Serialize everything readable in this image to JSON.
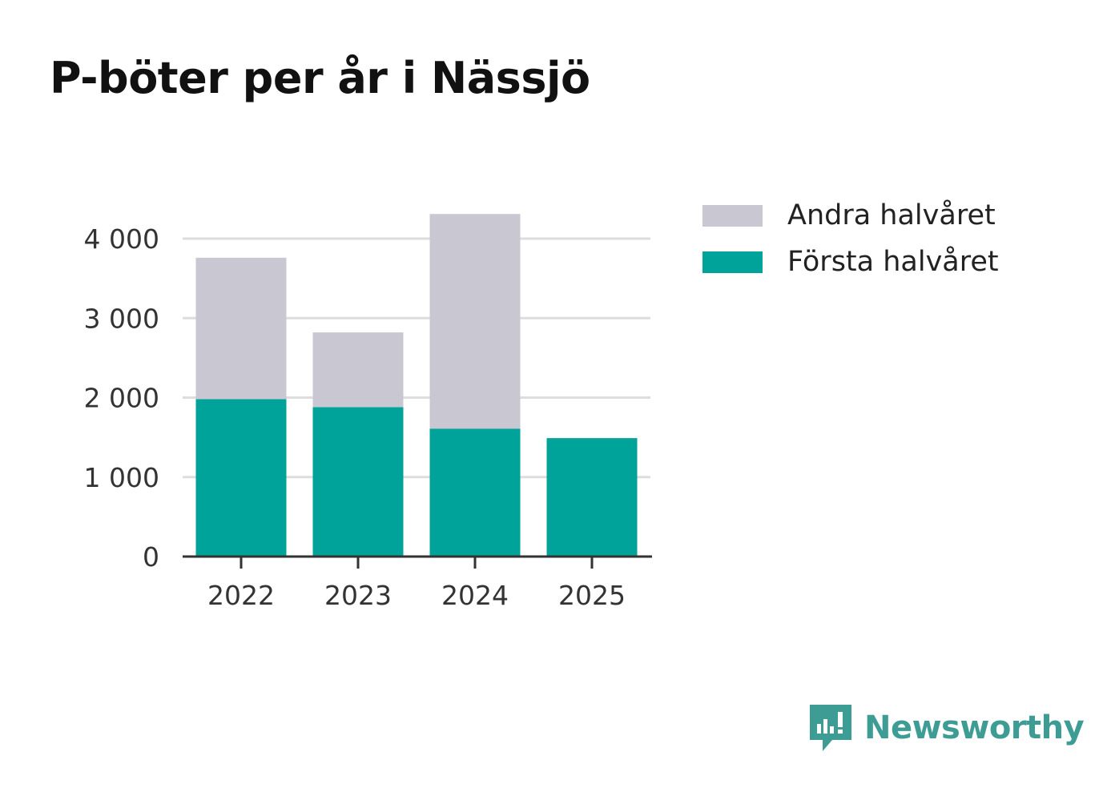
{
  "title": "P-böter per år i Nässjö",
  "chart_data": {
    "type": "bar",
    "stacked": true,
    "title": "P-böter per år i Nässjö",
    "categories": [
      "2022",
      "2023",
      "2024",
      "2025"
    ],
    "series": [
      {
        "name": "Första halvåret",
        "values": [
          1980,
          1880,
          1610,
          1490
        ],
        "color": "#00a39a"
      },
      {
        "name": "Andra halvåret",
        "values": [
          1780,
          940,
          2700,
          0
        ],
        "color": "#c8c7d2"
      }
    ],
    "ylim": [
      0,
      4300
    ],
    "yticks": [
      0,
      1000,
      2000,
      3000,
      4000
    ],
    "ytick_labels": [
      "0",
      "1 000",
      "2 000",
      "3 000",
      "4 000"
    ],
    "xlabel": "",
    "ylabel": "",
    "grid": true,
    "legend_position": "right"
  },
  "legend": [
    {
      "label": "Andra halvåret",
      "color": "#c8c7d2"
    },
    {
      "label": "Första halvåret",
      "color": "#00a39a"
    }
  ],
  "brand": {
    "name": "Newsworthy",
    "color": "#3d9c93",
    "icon": "newsworthy-logo-icon"
  }
}
